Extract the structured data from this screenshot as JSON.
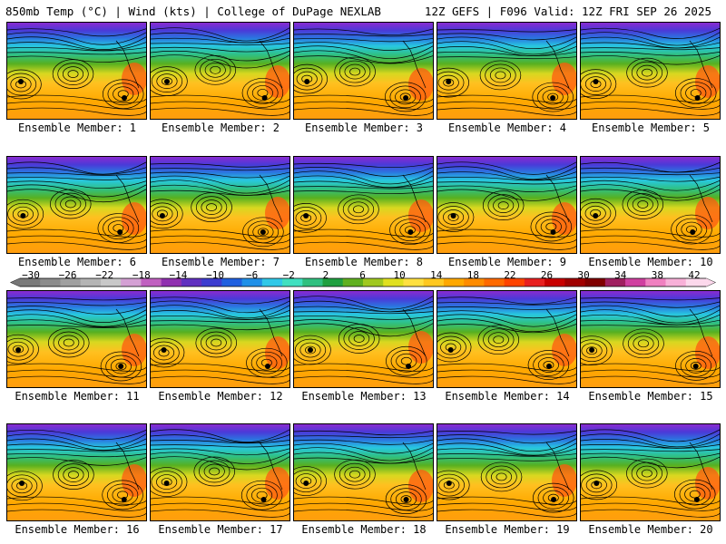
{
  "header": {
    "left": "850mb Temp (°C) | Wind (kts) | College of DuPage NEXLAB",
    "right": "12Z GEFS | F096 Valid: 12Z FRI SEP 26 2025"
  },
  "members": [
    "Ensemble Member: 1",
    "Ensemble Member: 2",
    "Ensemble Member: 3",
    "Ensemble Member: 4",
    "Ensemble Member: 5",
    "Ensemble Member: 6",
    "Ensemble Member: 7",
    "Ensemble Member: 8",
    "Ensemble Member: 9",
    "Ensemble Member: 10",
    "Ensemble Member: 11",
    "Ensemble Member: 12",
    "Ensemble Member: 13",
    "Ensemble Member: 14",
    "Ensemble Member: 15",
    "Ensemble Member: 16",
    "Ensemble Member: 17",
    "Ensemble Member: 18",
    "Ensemble Member: 19",
    "Ensemble Member: 20"
  ],
  "colorbar": {
    "ticks": [
      "−30",
      "−26",
      "−22",
      "−18",
      "−14",
      "−10",
      "−6",
      "−2",
      "2",
      "6",
      "10",
      "14",
      "18",
      "22",
      "26",
      "30",
      "34",
      "38",
      "42"
    ],
    "colors": [
      "#7a7a7a",
      "#8c8c8c",
      "#a0a0a0",
      "#b4b4b4",
      "#c8c8c8",
      "#d4a0d4",
      "#c060c0",
      "#9030b0",
      "#6030c0",
      "#3c3cd0",
      "#2060e0",
      "#2090e8",
      "#30c8e8",
      "#40e0c0",
      "#30c080",
      "#20a040",
      "#60b020",
      "#a0c820",
      "#e0e020",
      "#ffe040",
      "#ffc820",
      "#ffa800",
      "#ff8c00",
      "#ff6a00",
      "#ff4400",
      "#e82020",
      "#c80000",
      "#a00000",
      "#800000",
      "#a02060",
      "#d040a0",
      "#f080c0",
      "#f8b0d8",
      "#fcd8ec"
    ]
  }
}
